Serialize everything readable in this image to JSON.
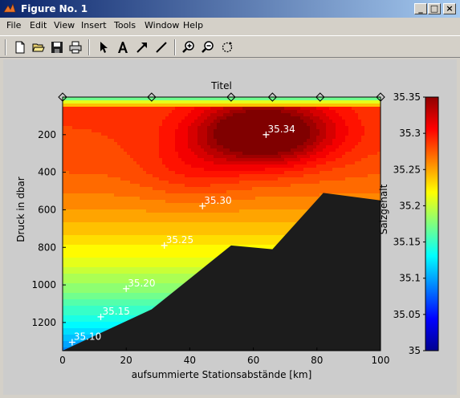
{
  "window": {
    "title": "Figure No. 1",
    "minimize_label": "_",
    "maximize_label": "□",
    "close_label": "×"
  },
  "menu": {
    "items": [
      "File",
      "Edit",
      "View",
      "Insert",
      "Tools",
      "Window",
      "Help"
    ]
  },
  "toolbar": {
    "buttons": [
      "new-file-icon",
      "open-folder-icon",
      "save-icon",
      "print-icon",
      "select-arrow-icon",
      "insert-text-icon",
      "insert-arrow-icon",
      "insert-line-icon",
      "zoom-in-icon",
      "zoom-out-icon",
      "rotate-icon"
    ]
  },
  "chart_data": {
    "type": "contour",
    "title": "Titel",
    "xlabel": "aufsummierte Stationsabstände [km]",
    "ylabel": "Druck in dbar",
    "xlim": [
      0,
      100
    ],
    "ylim": [
      1350,
      0
    ],
    "y_reversed": true,
    "x_ticks": [
      0,
      20,
      40,
      60,
      80,
      100
    ],
    "y_ticks": [
      200,
      400,
      600,
      800,
      1000,
      1200
    ],
    "stations_x": [
      0,
      28,
      53,
      66,
      81,
      100
    ],
    "colorbar": {
      "label": "Salzgehalt",
      "min": 35.0,
      "max": 35.35,
      "ticks": [
        "35.35",
        "35.3",
        "35.25",
        "35.2",
        "35.15",
        "35.1",
        "35.05",
        "35"
      ],
      "colormap": "jet"
    },
    "contour_labels": [
      {
        "text": "35.34",
        "x": 64,
        "y": 200
      },
      {
        "text": "35.30",
        "x": 44,
        "y": 580
      },
      {
        "text": "35.25",
        "x": 32,
        "y": 790
      },
      {
        "text": "35.20",
        "x": 20,
        "y": 1020
      },
      {
        "text": "35.15",
        "x": 12,
        "y": 1170
      },
      {
        "text": "35.10",
        "x": 3,
        "y": 1305
      }
    ],
    "bottom_topography_km_dbar": [
      [
        0,
        1350
      ],
      [
        28,
        1130
      ],
      [
        53,
        790
      ],
      [
        66,
        810
      ],
      [
        82,
        510
      ],
      [
        100,
        550
      ],
      [
        100,
        1350
      ]
    ],
    "colors": {
      "bottom": "#1c1c1c",
      "max_salinity": "#a80000"
    }
  }
}
